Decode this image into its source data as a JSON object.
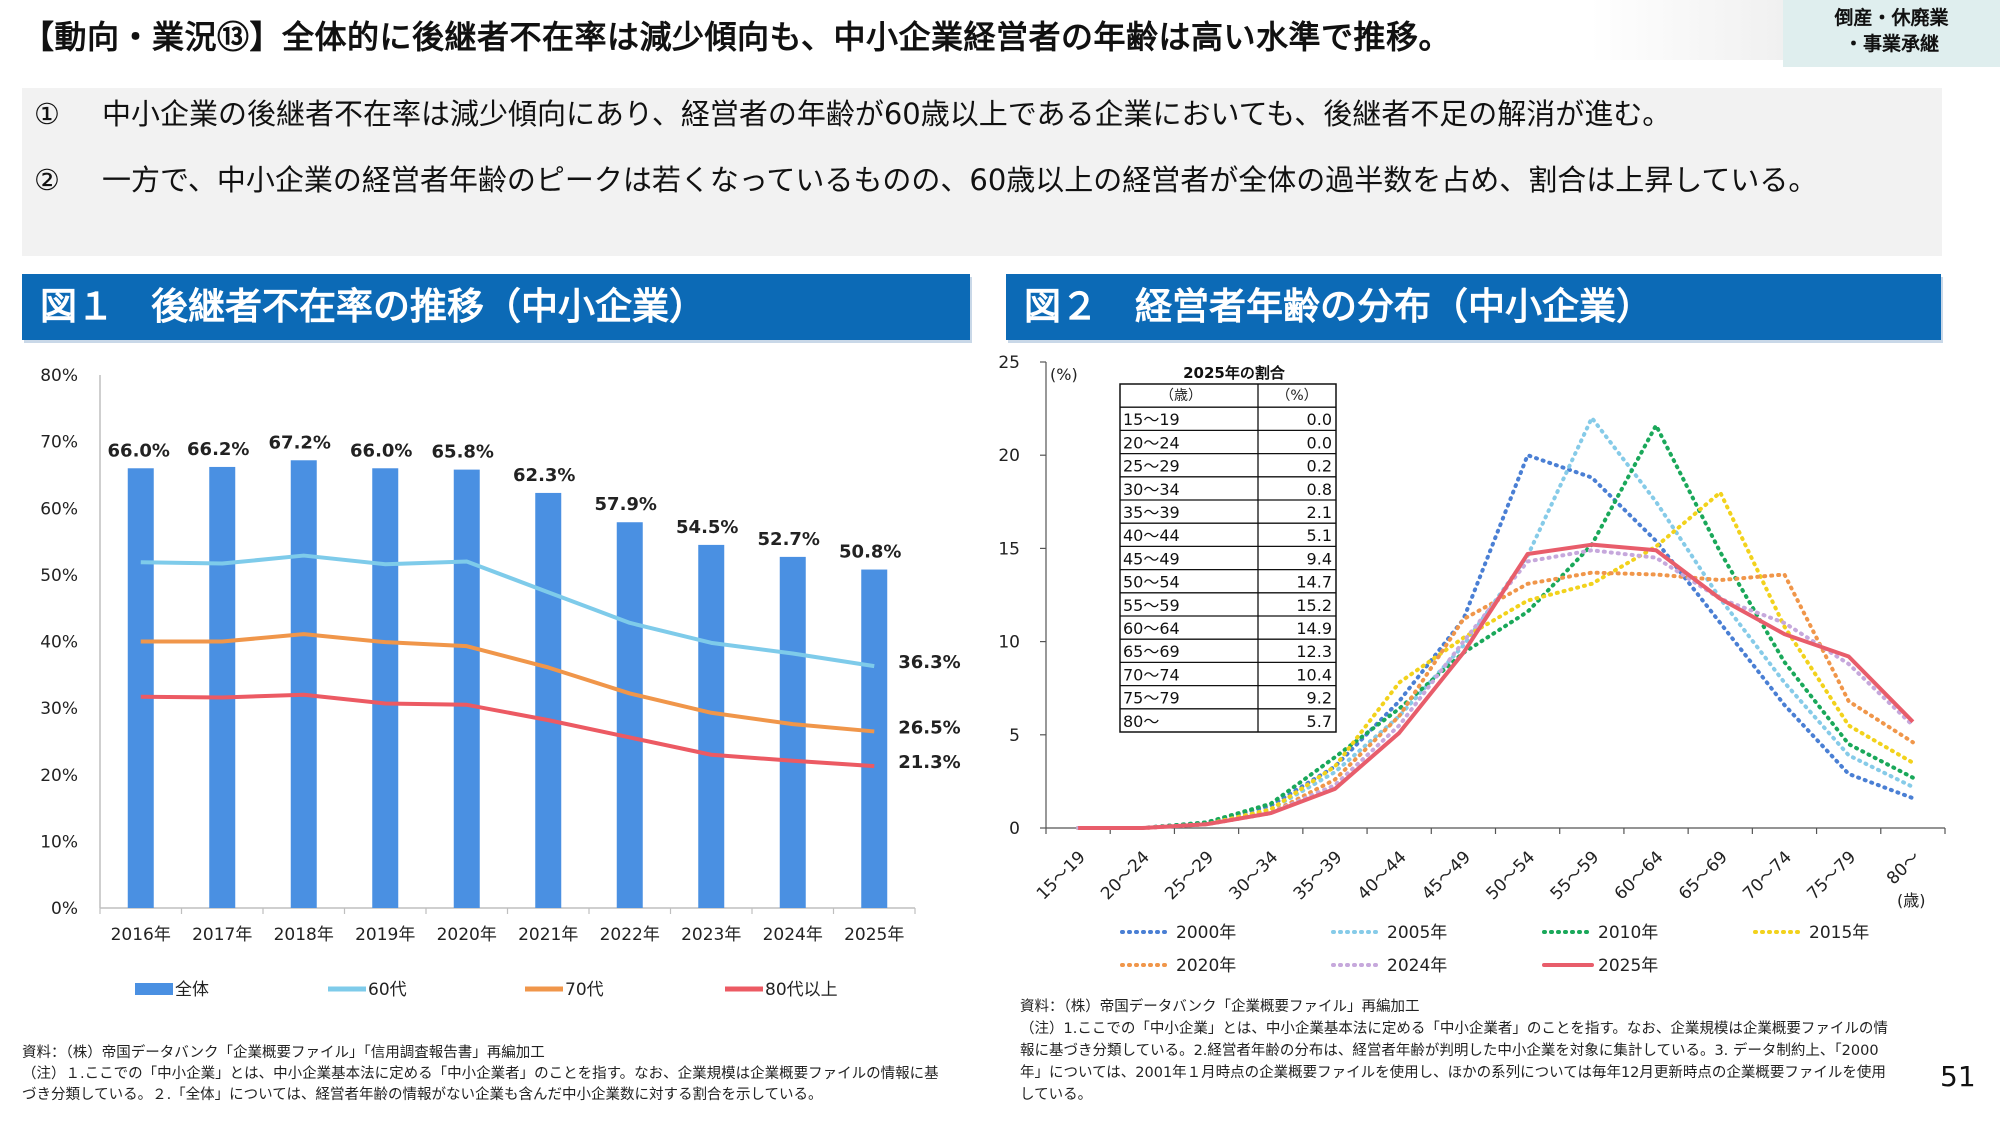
{
  "header": {
    "title": "【動向・業況⑬】全体的に後継者不在率は減少傾向も、中小企業経営者の年齢は高い水準で推移。",
    "tag_line1": "倒産・休廃業",
    "tag_line2": "・事業承継"
  },
  "summary": {
    "items": [
      {
        "num": "①",
        "text": "中小企業の後継者不在率は減少傾向にあり、経営者の年齢が60歳以上である企業においても、後継者不足の解消が進む。"
      },
      {
        "num": "②",
        "text": "一方で、中小企業の経営者年齢のピークは若くなっているものの、60歳以上の経営者が全体の過半数を占め、割合は上昇している。"
      }
    ]
  },
  "fig1": {
    "heading": "図１　後継者不在率の推移（中小企業）",
    "note": "資料：（株）帝国データバンク「企業概要ファイル」「信用調査報告書」再編加工\n（注）１.ここでの「中小企業」とは、中小企業基本法に定める「中小企業者」のことを指す。なお、企業規模は企業概要ファイルの情報に基づき分類している。２.「全体」については、経営者年齢の情報がない企業も含んだ中小企業数に対する割合を示している。"
  },
  "fig2": {
    "heading": "図２　経営者年齢の分布（中小企業）",
    "note": "資料：（株）帝国データバンク「企業概要ファイル」再編加工\n（注）1.ここでの「中小企業」とは、中小企業基本法に定める「中小企業者」のことを指す。なお、企業規模は企業概要ファイルの情報に基づき分類している。2.経営者年齢の分布は、経営者年齢が判明した中小企業を対象に集計している。3. データ制約上、「2000年」については、2001年１月時点の企業概要ファイルを使用し、ほかの系列については毎年12月更新時点の企業概要ファイルを使用している。",
    "table_title": "2025年の割合",
    "table_head": [
      "（歳）",
      "（%）"
    ],
    "table_rows": [
      [
        "15～19",
        "0.0"
      ],
      [
        "20～24",
        "0.0"
      ],
      [
        "25～29",
        "0.2"
      ],
      [
        "30～34",
        "0.8"
      ],
      [
        "35～39",
        "2.1"
      ],
      [
        "40～44",
        "5.1"
      ],
      [
        "45～49",
        "9.4"
      ],
      [
        "50～54",
        "14.7"
      ],
      [
        "55～59",
        "15.2"
      ],
      [
        "60～64",
        "14.9"
      ],
      [
        "65～69",
        "12.3"
      ],
      [
        "70～74",
        "10.4"
      ],
      [
        "75～79",
        "9.2"
      ],
      [
        "80～",
        "5.7"
      ]
    ]
  },
  "page_number": "51",
  "chart_data": [
    {
      "type": "bar",
      "categories": [
        "2016年",
        "2017年",
        "2018年",
        "2019年",
        "2020年",
        "2021年",
        "2022年",
        "2023年",
        "2024年",
        "2025年"
      ],
      "ylim": [
        0,
        80
      ],
      "yticks": [
        "0%",
        "10%",
        "20%",
        "30%",
        "40%",
        "50%",
        "60%",
        "70%",
        "80%"
      ],
      "legend_position": "bottom",
      "series": [
        {
          "name": "全体",
          "kind": "bar",
          "color": "#4a90e2",
          "values": [
            66.0,
            66.2,
            67.2,
            66.0,
            65.8,
            62.3,
            57.9,
            54.5,
            52.7,
            50.8
          ],
          "labels": [
            "66.0%",
            "66.2%",
            "67.2%",
            "66.0%",
            "65.8%",
            "62.3%",
            "57.9%",
            "54.5%",
            "52.7%",
            "50.8%"
          ]
        },
        {
          "name": "60代",
          "kind": "line",
          "color": "#7ecbea",
          "values": [
            51.9,
            51.7,
            52.9,
            51.6,
            52.0,
            47.4,
            42.8,
            39.8,
            38.2,
            36.3
          ],
          "end_label": "36.3%"
        },
        {
          "name": "70代",
          "kind": "line",
          "color": "#f0964a",
          "values": [
            40.0,
            40.0,
            41.1,
            39.9,
            39.3,
            36.1,
            32.2,
            29.3,
            27.6,
            26.5
          ],
          "end_label": "26.5%"
        },
        {
          "name": "80代以上",
          "kind": "line",
          "color": "#ec5a63",
          "values": [
            31.7,
            31.6,
            32.0,
            30.7,
            30.5,
            28.2,
            25.6,
            23.0,
            22.1,
            21.3
          ],
          "end_label": "21.3%"
        }
      ]
    },
    {
      "type": "line",
      "categories": [
        "15～19",
        "20～24",
        "25～29",
        "30～34",
        "35～39",
        "40～44",
        "45～49",
        "50～54",
        "55～59",
        "60～64",
        "65～69",
        "70～74",
        "75～79",
        "80～"
      ],
      "ylim": [
        0,
        25
      ],
      "yticks": [
        "0",
        "5",
        "10",
        "15",
        "20",
        "25"
      ],
      "ylabel": "(%)",
      "xlabel": "(歳)",
      "legend_position": "bottom",
      "series": [
        {
          "name": "2000年",
          "color": "#4a7fd4",
          "dotted": true,
          "values": [
            0.0,
            0.0,
            0.3,
            1.2,
            3.3,
            6.8,
            11.2,
            20.0,
            18.8,
            15.4,
            11.0,
            6.6,
            2.9,
            1.6
          ]
        },
        {
          "name": "2005年",
          "color": "#86cbe8",
          "dotted": true,
          "values": [
            0.0,
            0.0,
            0.2,
            1.0,
            3.0,
            6.0,
            9.8,
            14.6,
            22.0,
            17.5,
            12.3,
            7.8,
            3.9,
            2.2
          ]
        },
        {
          "name": "2010年",
          "color": "#1aa85a",
          "dotted": true,
          "values": [
            0.0,
            0.0,
            0.3,
            1.3,
            3.8,
            6.4,
            9.4,
            11.6,
            15.2,
            21.6,
            14.8,
            8.9,
            4.5,
            2.7
          ]
        },
        {
          "name": "2015年",
          "color": "#f2d21c",
          "dotted": true,
          "values": [
            0.0,
            0.0,
            0.2,
            1.0,
            3.3,
            7.8,
            10.2,
            12.2,
            13.1,
            15.1,
            18.0,
            10.8,
            5.5,
            3.5
          ]
        },
        {
          "name": "2020年",
          "color": "#f0964a",
          "dotted": true,
          "values": [
            0.0,
            0.0,
            0.2,
            0.8,
            2.6,
            6.0,
            11.2,
            13.1,
            13.7,
            13.6,
            13.3,
            13.6,
            6.8,
            4.6
          ]
        },
        {
          "name": "2024年",
          "color": "#c6a8dc",
          "dotted": true,
          "values": [
            0.0,
            0.0,
            0.2,
            0.8,
            2.3,
            5.5,
            10.0,
            14.3,
            14.9,
            14.5,
            12.3,
            11.0,
            8.8,
            5.5
          ]
        },
        {
          "name": "2025年",
          "color": "#e85d6b",
          "dotted": false,
          "values": [
            0.0,
            0.0,
            0.2,
            0.8,
            2.1,
            5.1,
            9.4,
            14.7,
            15.2,
            14.9,
            12.3,
            10.4,
            9.2,
            5.7
          ]
        }
      ]
    }
  ]
}
